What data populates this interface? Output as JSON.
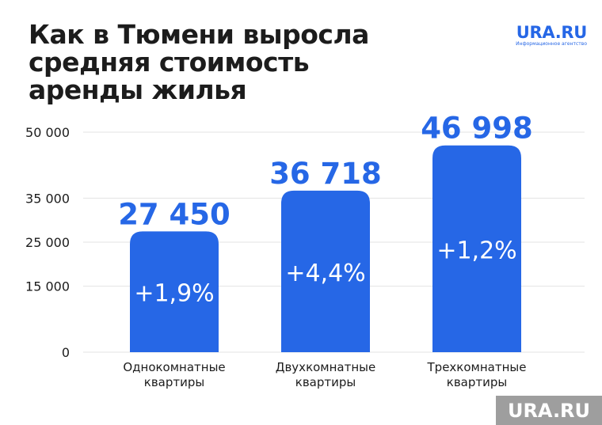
{
  "header": {
    "title_lines": [
      "Как в Тюмени выросла",
      "средняя стоимость",
      "аренды жилья"
    ]
  },
  "logo": {
    "name": "URA.RU",
    "subtitle": "Информационное агентство"
  },
  "watermark": {
    "text": "URA.RU"
  },
  "colors": {
    "bar": "#2667e6",
    "value_label": "#2667e6",
    "bar_text": "#ffffff",
    "grid": "#e3e3e3",
    "text": "#1c1c1c"
  },
  "chart_data": {
    "type": "bar",
    "title": "Как в Тюмени выросла средняя стоимость аренды жилья",
    "categories": [
      [
        "Однокомнатные",
        "квартиры"
      ],
      [
        "Двухкомнатные",
        "квартиры"
      ],
      [
        "Трехкомнатные",
        "квартиры"
      ]
    ],
    "values": [
      27450,
      36718,
      46998
    ],
    "value_labels": [
      "27 450",
      "36 718",
      "46 998"
    ],
    "change_labels": [
      "+1,9%",
      "+4,4%",
      "+1,2%"
    ],
    "y_ticks": [
      {
        "value": 0,
        "label": "0"
      },
      {
        "value": 15000,
        "label": "15 000"
      },
      {
        "value": 25000,
        "label": "25 000"
      },
      {
        "value": 35000,
        "label": "35 000"
      },
      {
        "value": 50000,
        "label": "50 000"
      }
    ],
    "ylim": [
      0,
      50000
    ],
    "grid": true,
    "legend": "none"
  }
}
